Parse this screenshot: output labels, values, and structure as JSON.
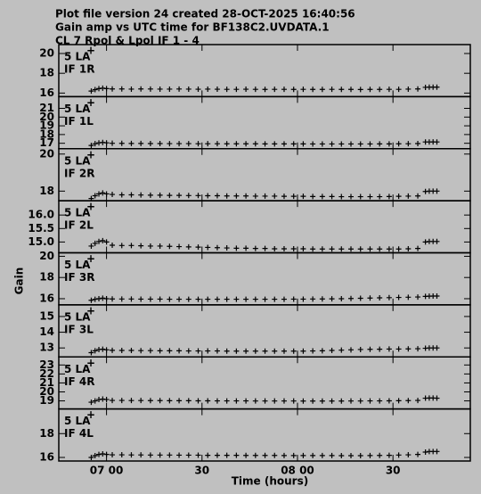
{
  "header": {
    "lines": [
      "Plot file version 24  created 28-OCT-2025 16:40:56",
      "Gain amp vs UTC time for BF138C2.UVDATA.1",
      "CL 7  Rpol & Lpol  IF 1 - 4"
    ]
  },
  "axes": {
    "xlabel": "Time (hours)",
    "ylabel": "Gain",
    "xlim": [
      6.75,
      8.905
    ],
    "xticks": [
      {
        "value": 7,
        "label": "07 00"
      },
      {
        "value": 7.5,
        "label": "30"
      },
      {
        "value": 8,
        "label": "08 00"
      },
      {
        "value": 8.5,
        "label": "30"
      }
    ],
    "x": [
      6.92,
      6.94,
      6.96,
      6.98,
      7,
      7.03,
      7.08,
      7.13,
      7.18,
      7.23,
      7.28,
      7.33,
      7.38,
      7.43,
      7.48,
      7.53,
      7.58,
      7.63,
      7.68,
      7.73,
      7.78,
      7.83,
      7.88,
      7.93,
      7.98,
      8.03,
      8.08,
      8.13,
      8.18,
      8.23,
      8.28,
      8.33,
      8.38,
      8.43,
      8.48,
      8.53,
      8.58,
      8.63,
      8.67,
      8.69,
      8.71,
      8.73
    ]
  },
  "chart_data": [
    {
      "type": "scatter",
      "antenna": "5 LA",
      "marker": "+",
      "if_label": "IF 1R",
      "color": "#000000",
      "ylim": [
        15.64,
        20.9
      ],
      "yticks": [
        16,
        18,
        20
      ],
      "values": [
        16.2,
        16.35,
        16.45,
        16.5,
        16.45,
        16.42,
        16.42,
        16.4,
        16.42,
        16.41,
        16.4,
        16.4,
        16.41,
        16.4,
        16.39,
        16.4,
        16.39,
        16.38,
        16.38,
        16.39,
        16.38,
        16.37,
        16.38,
        16.38,
        16.37,
        16.38,
        16.37,
        16.37,
        16.38,
        16.37,
        16.37,
        16.36,
        16.37,
        16.37,
        16.38,
        16.38,
        16.4,
        16.42,
        16.58,
        16.6,
        16.6,
        16.6
      ]
    },
    {
      "type": "scatter",
      "antenna": "5 LA",
      "marker": "+",
      "if_label": "IF 1L",
      "color": "#000000",
      "ylim": [
        16.38,
        22.34
      ],
      "yticks": [
        17,
        18,
        19,
        20,
        21
      ],
      "values": [
        16.75,
        16.95,
        17.05,
        17.1,
        17.05,
        17,
        16.99,
        16.98,
        16.98,
        16.97,
        16.97,
        16.96,
        16.96,
        16.96,
        16.95,
        16.95,
        16.95,
        16.94,
        16.94,
        16.94,
        16.94,
        16.93,
        16.93,
        16.93,
        16.93,
        16.93,
        16.92,
        16.92,
        16.92,
        16.92,
        16.92,
        16.92,
        16.92,
        16.93,
        16.93,
        16.94,
        16.95,
        16.97,
        17.15,
        17.15,
        17.16,
        17.15
      ]
    },
    {
      "type": "scatter",
      "antenna": "5 LA",
      "marker": "+",
      "if_label": "IF 2R",
      "color": "#000000",
      "ylim": [
        17.48,
        20.29
      ],
      "yticks": [
        18,
        20
      ],
      "values": [
        17.6,
        17.75,
        17.85,
        17.9,
        17.85,
        17.82,
        17.8,
        17.8,
        17.79,
        17.78,
        17.78,
        17.77,
        17.77,
        17.76,
        17.76,
        17.75,
        17.75,
        17.74,
        17.74,
        17.74,
        17.73,
        17.73,
        17.73,
        17.72,
        17.72,
        17.72,
        17.71,
        17.71,
        17.71,
        17.7,
        17.7,
        17.7,
        17.7,
        17.7,
        17.71,
        17.72,
        17.73,
        17.74,
        17.98,
        18,
        18,
        18
      ]
    },
    {
      "type": "scatter",
      "antenna": "5 LA",
      "marker": "+",
      "if_label": "IF 2L",
      "color": "#000000",
      "ylim": [
        14.6,
        16.53
      ],
      "yticks": [
        {
          "value": 15,
          "label": "15.0"
        },
        15.5,
        {
          "value": 16,
          "label": "16.0"
        }
      ],
      "values": [
        14.85,
        14.95,
        15.02,
        15.05,
        15,
        14.88,
        14.87,
        14.87,
        14.86,
        14.85,
        14.85,
        14.84,
        14.83,
        14.82,
        14.81,
        14.8,
        14.79,
        14.78,
        14.77,
        14.77,
        14.76,
        14.76,
        14.75,
        14.75,
        14.75,
        14.75,
        14.74,
        14.74,
        14.74,
        14.74,
        14.74,
        14.74,
        14.74,
        14.74,
        14.74,
        14.74,
        14.75,
        14.76,
        15,
        15.02,
        15.02,
        15.02
      ]
    },
    {
      "type": "scatter",
      "antenna": "5 LA",
      "marker": "+",
      "if_label": "IF 3R",
      "color": "#000000",
      "ylim": [
        15.42,
        20.33
      ],
      "yticks": [
        16,
        18,
        20
      ],
      "values": [
        15.85,
        15.95,
        16,
        16.05,
        16,
        15.98,
        15.97,
        15.97,
        15.96,
        15.96,
        15.96,
        15.95,
        15.95,
        15.95,
        15.95,
        15.95,
        15.95,
        15.95,
        15.95,
        15.95,
        15.95,
        15.95,
        15.95,
        15.95,
        15.96,
        15.96,
        15.97,
        15.98,
        15.99,
        16,
        16.02,
        16.04,
        16.06,
        16.08,
        16.1,
        16.12,
        16.14,
        16.16,
        16.22,
        16.24,
        16.25,
        16.25
      ]
    },
    {
      "type": "scatter",
      "antenna": "5 LA",
      "marker": "+",
      "if_label": "IF 3L",
      "color": "#000000",
      "ylim": [
        12.43,
        15.74
      ],
      "yticks": [
        13,
        14,
        15
      ],
      "values": [
        12.7,
        12.82,
        12.9,
        12.92,
        12.88,
        12.85,
        12.84,
        12.84,
        12.83,
        12.83,
        12.82,
        12.82,
        12.82,
        12.81,
        12.81,
        12.81,
        12.81,
        12.8,
        12.8,
        12.8,
        12.8,
        12.8,
        12.8,
        12.8,
        12.8,
        12.8,
        12.81,
        12.82,
        12.84,
        12.86,
        12.88,
        12.9,
        12.91,
        12.92,
        12.93,
        12.93,
        12.94,
        12.95,
        12.98,
        13,
        13,
        13
      ]
    },
    {
      "type": "scatter",
      "antenna": "5 LA",
      "marker": "+",
      "if_label": "IF 4R",
      "color": "#000000",
      "ylim": [
        18.1,
        23.9
      ],
      "yticks": [
        19,
        20,
        21,
        22,
        23
      ],
      "values": [
        18.85,
        19,
        19.15,
        19.2,
        19.15,
        19.05,
        19.05,
        19.04,
        19.04,
        19.03,
        19.03,
        19.02,
        19.02,
        19.02,
        19.01,
        19.01,
        19,
        19,
        19,
        19,
        18.99,
        18.99,
        18.99,
        18.99,
        18.99,
        18.98,
        18.98,
        18.98,
        18.98,
        18.98,
        18.99,
        18.99,
        19,
        19,
        19.01,
        19.02,
        19.03,
        19.05,
        19.3,
        19.32,
        19.32,
        19.3
      ]
    },
    {
      "type": "scatter",
      "antenna": "5 LA",
      "marker": "+",
      "if_label": "IF 4L",
      "color": "#000000",
      "ylim": [
        15.7,
        20.07
      ],
      "yticks": [
        16,
        18
      ],
      "values": [
        16,
        16.15,
        16.25,
        16.3,
        16.25,
        16.22,
        16.22,
        16.21,
        16.21,
        16.2,
        16.2,
        16.2,
        16.19,
        16.19,
        16.19,
        16.18,
        16.18,
        16.18,
        16.18,
        16.17,
        16.17,
        16.17,
        16.17,
        16.16,
        16.16,
        16.16,
        16.16,
        16.16,
        16.16,
        16.15,
        16.15,
        16.15,
        16.16,
        16.17,
        16.18,
        16.2,
        16.22,
        16.25,
        16.45,
        16.5,
        16.5,
        16.5
      ]
    }
  ]
}
